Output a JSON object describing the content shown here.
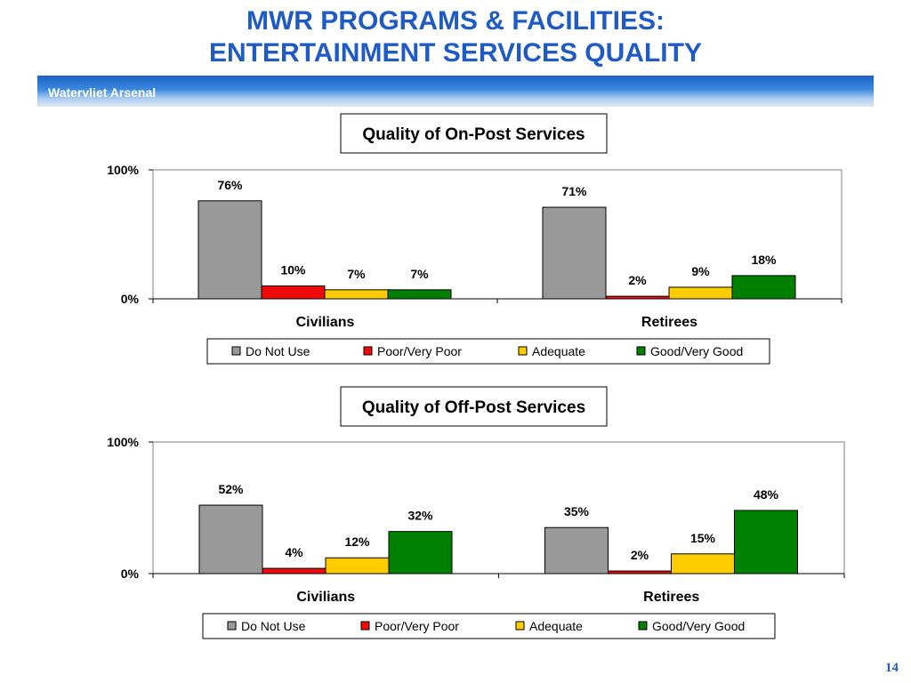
{
  "slide": {
    "title_line1": "MWR PROGRAMS & FACILITIES:",
    "title_line2": "ENTERTAINMENT SERVICES QUALITY",
    "banner": "Watervliet Arsenal",
    "page_number": "14"
  },
  "chart_data": [
    {
      "type": "bar",
      "title": "Quality of On-Post Services",
      "categories": [
        "Civilians",
        "Retirees"
      ],
      "ylim": [
        0,
        100
      ],
      "y_ticks": [
        "0%",
        "100%"
      ],
      "legend_position": "bottom",
      "series": [
        {
          "name": "Do Not Use",
          "color": "#999999",
          "values": [
            76,
            71
          ],
          "labels": [
            "76%",
            "71%"
          ]
        },
        {
          "name": "Poor/Very Poor",
          "color": "#ee0a0a",
          "values": [
            10,
            2
          ],
          "labels": [
            "10%",
            "2%"
          ]
        },
        {
          "name": "Adequate",
          "color": "#ffcc00",
          "values": [
            7,
            9
          ],
          "labels": [
            "7%",
            "9%"
          ]
        },
        {
          "name": "Good/Very Good",
          "color": "#008000",
          "values": [
            7,
            18
          ],
          "labels": [
            "7%",
            "18%"
          ]
        }
      ]
    },
    {
      "type": "bar",
      "title": "Quality of Off-Post Services",
      "categories": [
        "Civilians",
        "Retirees"
      ],
      "ylim": [
        0,
        100
      ],
      "y_ticks": [
        "0%",
        "100%"
      ],
      "legend_position": "bottom",
      "series": [
        {
          "name": "Do Not Use",
          "color": "#999999",
          "values": [
            52,
            35
          ],
          "labels": [
            "52%",
            "35%"
          ]
        },
        {
          "name": "Poor/Very Poor",
          "color": "#ee0a0a",
          "values": [
            4,
            2
          ],
          "labels": [
            "4%",
            "2%"
          ]
        },
        {
          "name": "Adequate",
          "color": "#ffcc00",
          "values": [
            12,
            15
          ],
          "labels": [
            "12%",
            "15%"
          ]
        },
        {
          "name": "Good/Very Good",
          "color": "#008000",
          "values": [
            32,
            48
          ],
          "labels": [
            "32%",
            "48%"
          ]
        }
      ]
    }
  ]
}
